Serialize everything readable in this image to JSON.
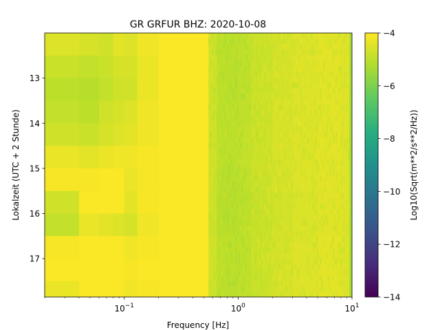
{
  "chart_data": {
    "type": "heatmap",
    "title": "GR GRFUR  BHZ: 2020-10-08",
    "xlabel": "Frequency [Hz]",
    "ylabel": "Lokalzeit (UTC + 2 Stunde)",
    "x_scale": "log",
    "xlim": [
      0.02,
      10
    ],
    "ylim": [
      17.85,
      12.0
    ],
    "y_inverted": true,
    "x_ticks": [
      {
        "value": 0.1,
        "base": "10",
        "exp": "−1"
      },
      {
        "value": 1,
        "base": "10",
        "exp": "0"
      },
      {
        "value": 10,
        "base": "10",
        "exp": "1"
      }
    ],
    "y_ticks": [
      {
        "value": 13,
        "label": "13"
      },
      {
        "value": 14,
        "label": "14"
      },
      {
        "value": 15,
        "label": "15"
      },
      {
        "value": 16,
        "label": "16"
      },
      {
        "value": 17,
        "label": "17"
      }
    ],
    "colorbar": {
      "label": "Log10(Sqrt(m**2/s**2/Hz))",
      "colormap": "viridis",
      "range": [
        -14,
        -4
      ],
      "ticks": [
        {
          "value": -4,
          "label": "−4"
        },
        {
          "value": -6,
          "label": "−6"
        },
        {
          "value": -8,
          "label": "−8"
        },
        {
          "value": -10,
          "label": "−10"
        },
        {
          "value": -12,
          "label": "−12"
        },
        {
          "value": -14,
          "label": "−14"
        }
      ]
    },
    "frequency_bands_hz": [
      0.02,
      0.04,
      0.06,
      0.08,
      0.1,
      0.13,
      0.2,
      0.3,
      0.45,
      0.55,
      0.65,
      0.8,
      1.0,
      1.3,
      2,
      3,
      5,
      8,
      9.5,
      10
    ],
    "time_bins_h": [
      12.0,
      12.5,
      13.0,
      13.5,
      14.0,
      14.5,
      15.0,
      15.5,
      16.0,
      16.5,
      17.0,
      17.5,
      17.85
    ],
    "values": [
      [
        -4.5,
        -4.6,
        -4.7,
        -4.4,
        -4.5,
        -4.2,
        -4.05,
        -4.05,
        -4.05,
        -4.7,
        -5.0,
        -5.0,
        -4.95,
        -4.8,
        -4.65,
        -4.5,
        -4.4,
        -4.5,
        -5.4
      ],
      [
        -4.8,
        -4.9,
        -4.8,
        -4.6,
        -4.6,
        -4.3,
        -4.05,
        -4.05,
        -4.05,
        -4.7,
        -5.0,
        -5.05,
        -4.95,
        -4.8,
        -4.65,
        -4.5,
        -4.4,
        -4.5,
        -5.4
      ],
      [
        -5.0,
        -5.1,
        -4.9,
        -4.7,
        -4.7,
        -4.3,
        -4.05,
        -4.05,
        -4.05,
        -4.7,
        -5.0,
        -5.05,
        -4.95,
        -4.8,
        -4.65,
        -4.5,
        -4.4,
        -4.5,
        -5.4
      ],
      [
        -4.9,
        -5.0,
        -4.7,
        -4.6,
        -4.5,
        -4.2,
        -4.05,
        -4.05,
        -4.05,
        -4.7,
        -5.0,
        -5.0,
        -4.95,
        -4.8,
        -4.65,
        -4.5,
        -4.4,
        -4.5,
        -5.4
      ],
      [
        -4.7,
        -4.8,
        -4.6,
        -4.5,
        -4.4,
        -4.2,
        -4.05,
        -4.05,
        -4.05,
        -4.7,
        -5.0,
        -5.0,
        -4.9,
        -4.75,
        -4.6,
        -4.5,
        -4.4,
        -4.5,
        -5.4
      ],
      [
        -4.3,
        -4.4,
        -4.3,
        -4.2,
        -4.2,
        -4.1,
        -4.05,
        -4.05,
        -4.05,
        -4.7,
        -5.0,
        -5.0,
        -4.9,
        -4.75,
        -4.6,
        -4.5,
        -4.4,
        -4.5,
        -5.4
      ],
      [
        -4.1,
        -4.1,
        -4.05,
        -4.05,
        -4.3,
        -4.1,
        -4.05,
        -4.05,
        -4.05,
        -4.7,
        -5.05,
        -5.05,
        -4.95,
        -4.8,
        -4.65,
        -4.5,
        -4.4,
        -4.5,
        -5.4
      ],
      [
        -4.7,
        -4.05,
        -4.05,
        -4.05,
        -4.4,
        -4.1,
        -4.05,
        -4.05,
        -4.05,
        -4.75,
        -5.1,
        -5.1,
        -5.0,
        -4.85,
        -4.7,
        -4.55,
        -4.45,
        -4.5,
        -5.4
      ],
      [
        -4.9,
        -4.3,
        -4.4,
        -4.5,
        -4.6,
        -4.2,
        -4.05,
        -4.05,
        -4.05,
        -4.75,
        -5.1,
        -5.1,
        -5.0,
        -4.85,
        -4.7,
        -4.55,
        -4.45,
        -4.5,
        -5.4
      ],
      [
        -4.1,
        -4.05,
        -4.05,
        -4.05,
        -4.2,
        -4.1,
        -4.05,
        -4.05,
        -4.05,
        -4.7,
        -5.0,
        -5.0,
        -4.95,
        -4.8,
        -4.65,
        -4.5,
        -4.4,
        -4.5,
        -5.4
      ],
      [
        -4.05,
        -4.05,
        -4.05,
        -4.05,
        -4.1,
        -4.05,
        -4.05,
        -4.05,
        -4.05,
        -4.7,
        -5.0,
        -5.0,
        -4.95,
        -4.8,
        -4.65,
        -4.5,
        -4.4,
        -4.5,
        -5.4
      ],
      [
        -4.3,
        -4.05,
        -4.05,
        -4.05,
        -4.2,
        -4.1,
        -4.05,
        -4.05,
        -4.05,
        -4.75,
        -5.05,
        -5.05,
        -4.95,
        -4.8,
        -4.65,
        -4.5,
        -4.4,
        -4.5,
        -5.4
      ]
    ]
  }
}
